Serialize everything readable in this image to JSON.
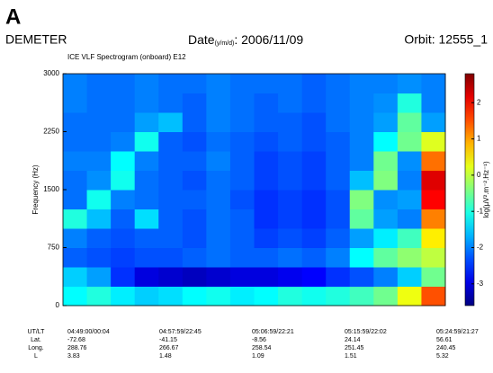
{
  "header": {
    "panel": "A",
    "mission": "DEMETER",
    "date_label": "Date",
    "date_format": "(y/m/d)",
    "date_value": ": 2006/11/09",
    "orbit": "Orbit: 12555_1"
  },
  "chart_data": {
    "type": "heatmap",
    "title": "ICE VLF Spectrogram (onboard) E12",
    "ylabel": "Frequency (Hz)",
    "ylim": [
      0,
      3000
    ],
    "yticks": [
      0,
      750,
      1500,
      2250,
      3000
    ],
    "colormap": "jet",
    "colorbar": {
      "label": "log(µV².m⁻².Hz⁻¹)",
      "clim": [
        -3.6,
        2.8
      ],
      "ticks": [
        -3,
        -2,
        -1,
        0,
        1,
        2
      ]
    },
    "z": [
      [
        -1.2,
        -1.0,
        -1.3,
        -1.5,
        -1.4,
        -1.2,
        -1.1,
        -1.3,
        -1.2,
        -1.0,
        -1.1,
        -1.0,
        -0.8,
        -0.5,
        0.3,
        1.5
      ],
      [
        -1.5,
        -1.8,
        -2.5,
        -3.0,
        -3.1,
        -3.2,
        -3.1,
        -3.0,
        -3.0,
        -2.9,
        -2.8,
        -2.5,
        -2.3,
        -2.0,
        -1.5,
        -0.5
      ],
      [
        -2.2,
        -2.3,
        -2.4,
        -2.3,
        -2.3,
        -2.2,
        -2.1,
        -2.2,
        -2.2,
        -2.1,
        -2.2,
        -2.0,
        -1.2,
        -0.6,
        -0.3,
        0.0
      ],
      [
        -2.0,
        -2.2,
        -2.3,
        -2.2,
        -2.2,
        -2.3,
        -2.1,
        -2.2,
        -2.4,
        -2.3,
        -2.4,
        -2.2,
        -1.8,
        -1.3,
        -0.8,
        0.5
      ],
      [
        -1.0,
        -1.6,
        -2.2,
        -1.4,
        -2.2,
        -2.3,
        -2.1,
        -2.2,
        -2.5,
        -2.4,
        -2.5,
        -2.3,
        -0.6,
        -1.8,
        -2.0,
        1.2
      ],
      [
        -2.1,
        -1.1,
        -2.0,
        -2.1,
        -2.2,
        -2.2,
        -2.1,
        -2.3,
        -2.5,
        -2.4,
        -2.5,
        -2.3,
        -0.4,
        -1.9,
        -1.8,
        2.0
      ],
      [
        -2.1,
        -1.9,
        -1.1,
        -2.1,
        -2.2,
        -2.3,
        -2.1,
        -2.2,
        -2.4,
        -2.3,
        -2.4,
        -2.2,
        -1.6,
        -0.4,
        -2.0,
        2.2
      ],
      [
        -2.0,
        -2.0,
        -1.2,
        -2.0,
        -2.2,
        -2.2,
        -2.0,
        -2.2,
        -2.4,
        -2.3,
        -2.4,
        -2.2,
        -2.0,
        -0.5,
        -1.9,
        1.3
      ],
      [
        -2.1,
        -2.1,
        -2.0,
        -1.1,
        -2.2,
        -2.3,
        -2.1,
        -2.2,
        -2.3,
        -2.2,
        -2.3,
        -2.2,
        -2.0,
        -1.2,
        -0.5,
        0.2
      ],
      [
        -2.1,
        -2.1,
        -2.1,
        -1.8,
        -1.6,
        -2.2,
        -2.0,
        -2.1,
        -2.2,
        -2.2,
        -2.3,
        -2.1,
        -2.0,
        -1.8,
        -0.6,
        -1.8
      ],
      [
        -2.0,
        -2.1,
        -2.1,
        -2.0,
        -2.1,
        -2.2,
        -2.0,
        -2.1,
        -2.2,
        -2.1,
        -2.2,
        -2.1,
        -2.0,
        -1.9,
        -1.0,
        -2.0
      ],
      [
        -2.0,
        -2.1,
        -2.1,
        -2.0,
        -2.1,
        -2.1,
        -2.0,
        -2.1,
        -2.1,
        -2.1,
        -2.2,
        -2.1,
        -2.0,
        -2.0,
        -1.9,
        -2.0
      ]
    ]
  },
  "table": {
    "row_labels": [
      "UT/LT",
      "Lat.",
      "Long.",
      "L"
    ],
    "columns": [
      [
        "04:49:00/00:04",
        -72.68,
        288.76,
        3.83
      ],
      [
        "04:57:59/22:45",
        -41.15,
        266.67,
        1.48
      ],
      [
        "05:06:59/22:21",
        -8.56,
        258.54,
        1.09
      ],
      [
        "05:15:59/22:02",
        24.14,
        251.45,
        1.51
      ],
      [
        "05:24:59/21:27",
        56.61,
        240.45,
        5.32
      ]
    ]
  }
}
